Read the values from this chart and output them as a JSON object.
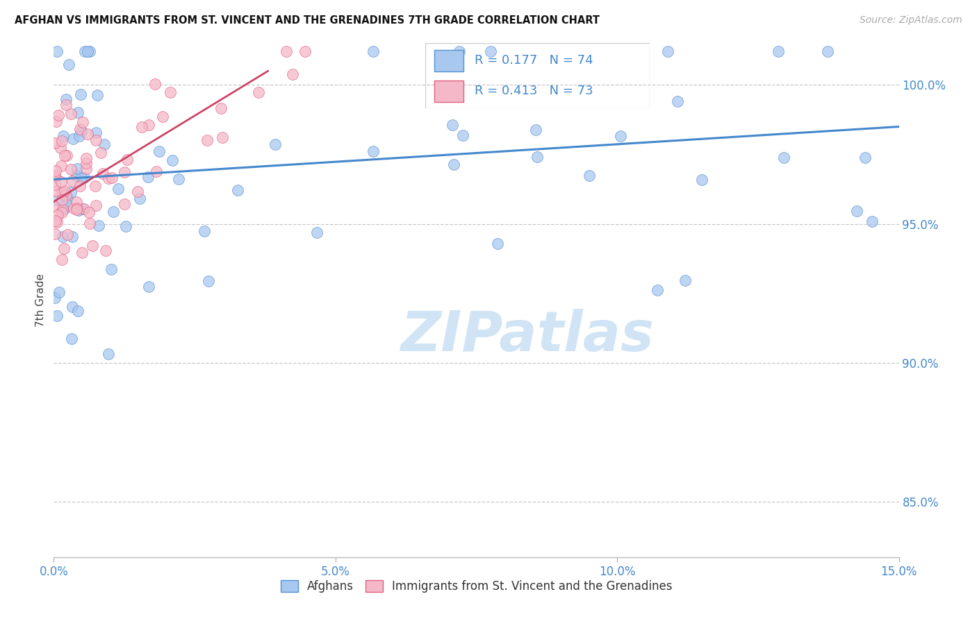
{
  "title": "AFGHAN VS IMMIGRANTS FROM ST. VINCENT AND THE GRENADINES 7TH GRADE CORRELATION CHART",
  "source": "Source: ZipAtlas.com",
  "ylabel": "7th Grade",
  "xmin": 0.0,
  "xmax": 15.0,
  "ymin": 83.0,
  "ymax": 101.5,
  "ytick_pos": [
    85.0,
    90.0,
    95.0,
    100.0
  ],
  "ytick_labels": [
    "85.0%",
    "90.0%",
    "95.0%",
    "100.0%"
  ],
  "xtick_pos": [
    0.0,
    5.0,
    10.0,
    15.0
  ],
  "xtick_labels": [
    "0.0%",
    "5.0%",
    "10.0%",
    "15.0%"
  ],
  "legend_label1": "Afghans",
  "legend_label2": "Immigrants from St. Vincent and the Grenadines",
  "blue_R": 0.177,
  "blue_N": 74,
  "pink_R": 0.413,
  "pink_N": 73,
  "dot_color_blue": "#a8c8f0",
  "dot_color_pink": "#f5b8c8",
  "edge_color_blue": "#5590d0",
  "edge_color_pink": "#e06080",
  "line_color_blue": "#4488cc",
  "line_color_pink": "#cc4466",
  "blue_line_x0": 0.0,
  "blue_line_x1": 15.0,
  "blue_line_y0": 96.6,
  "blue_line_y1": 98.5,
  "pink_line_x0": 0.0,
  "pink_line_x1": 3.8,
  "pink_line_y0": 95.8,
  "pink_line_y1": 100.5,
  "watermark_text": "ZIPatlas",
  "watermark_color": "#d0e4f5",
  "grid_color": "#c8c8c8",
  "tick_color": "#4488cc",
  "title_color": "#111111",
  "source_color": "#aaaaaa",
  "ylabel_color": "#444444",
  "background": "#ffffff"
}
